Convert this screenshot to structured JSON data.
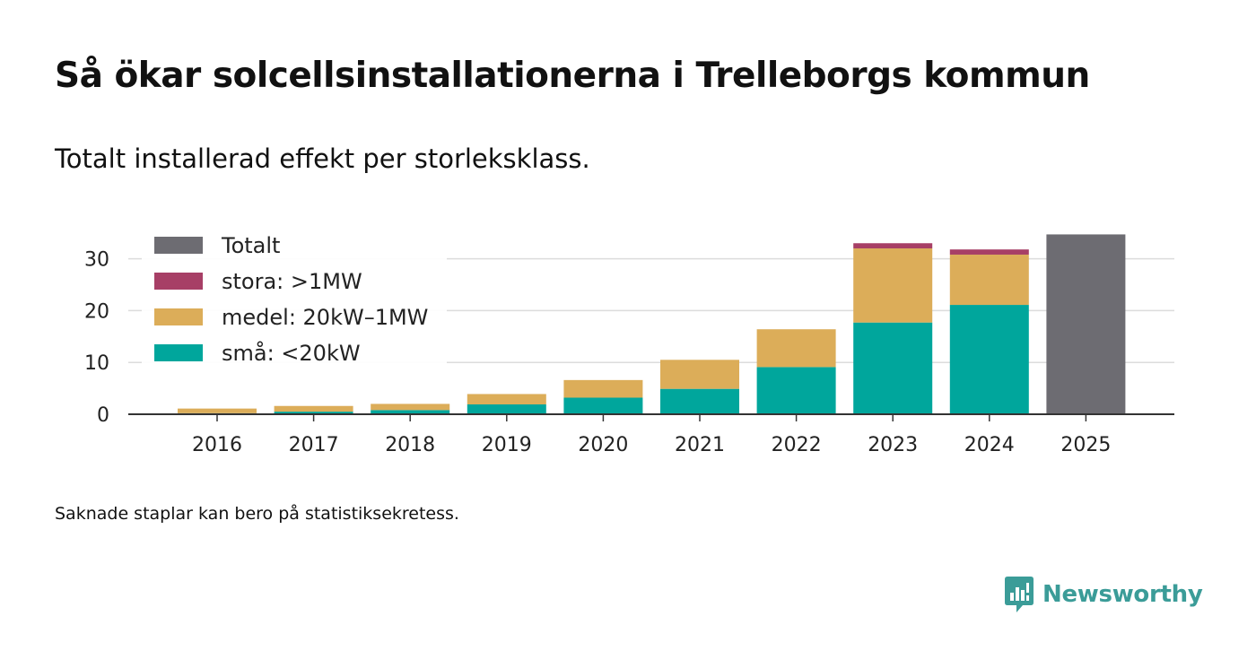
{
  "title": "Så ökar solcellsinstallationerna i Trelleborgs kommun",
  "subtitle": "Totalt installerad effekt per storleksklass.",
  "footnote": "Saknade staplar kan bero på statistiksekretess.",
  "brand": {
    "name": "Newsworthy",
    "icon": "newsworthy-logo-icon",
    "color": "#3b9c98"
  },
  "chart_data": {
    "type": "bar",
    "stacked": true,
    "title": "Så ökar solcellsinstallationerna i Trelleborgs kommun",
    "xlabel": "",
    "ylabel": "",
    "ylim": [
      0,
      35
    ],
    "yticks": [
      0,
      10,
      20,
      30
    ],
    "grid": true,
    "legend_position": "top-left",
    "categories": [
      "2016",
      "2017",
      "2018",
      "2019",
      "2020",
      "2021",
      "2022",
      "2023",
      "2024",
      "2025"
    ],
    "series": [
      {
        "name": "små: <20kW",
        "color": "#00a69c",
        "values": [
          0.2,
          0.5,
          0.8,
          1.9,
          3.2,
          4.9,
          9.1,
          17.7,
          21.1,
          null
        ]
      },
      {
        "name": "medel: 20kW–1MW",
        "color": "#dcad59",
        "values": [
          0.9,
          1.1,
          1.2,
          2.0,
          3.4,
          5.6,
          7.3,
          14.3,
          9.7,
          null
        ]
      },
      {
        "name": "stora: >1MW",
        "color": "#a73f66",
        "values": [
          null,
          null,
          null,
          null,
          null,
          null,
          null,
          1.0,
          1.0,
          null
        ]
      },
      {
        "name": "Totalt",
        "color": "#6d6c72",
        "values": [
          null,
          null,
          null,
          null,
          null,
          null,
          null,
          null,
          null,
          34.7
        ]
      }
    ],
    "legend_order": [
      "Totalt",
      "stora: >1MW",
      "medel: 20kW–1MW",
      "små: <20kW"
    ]
  }
}
